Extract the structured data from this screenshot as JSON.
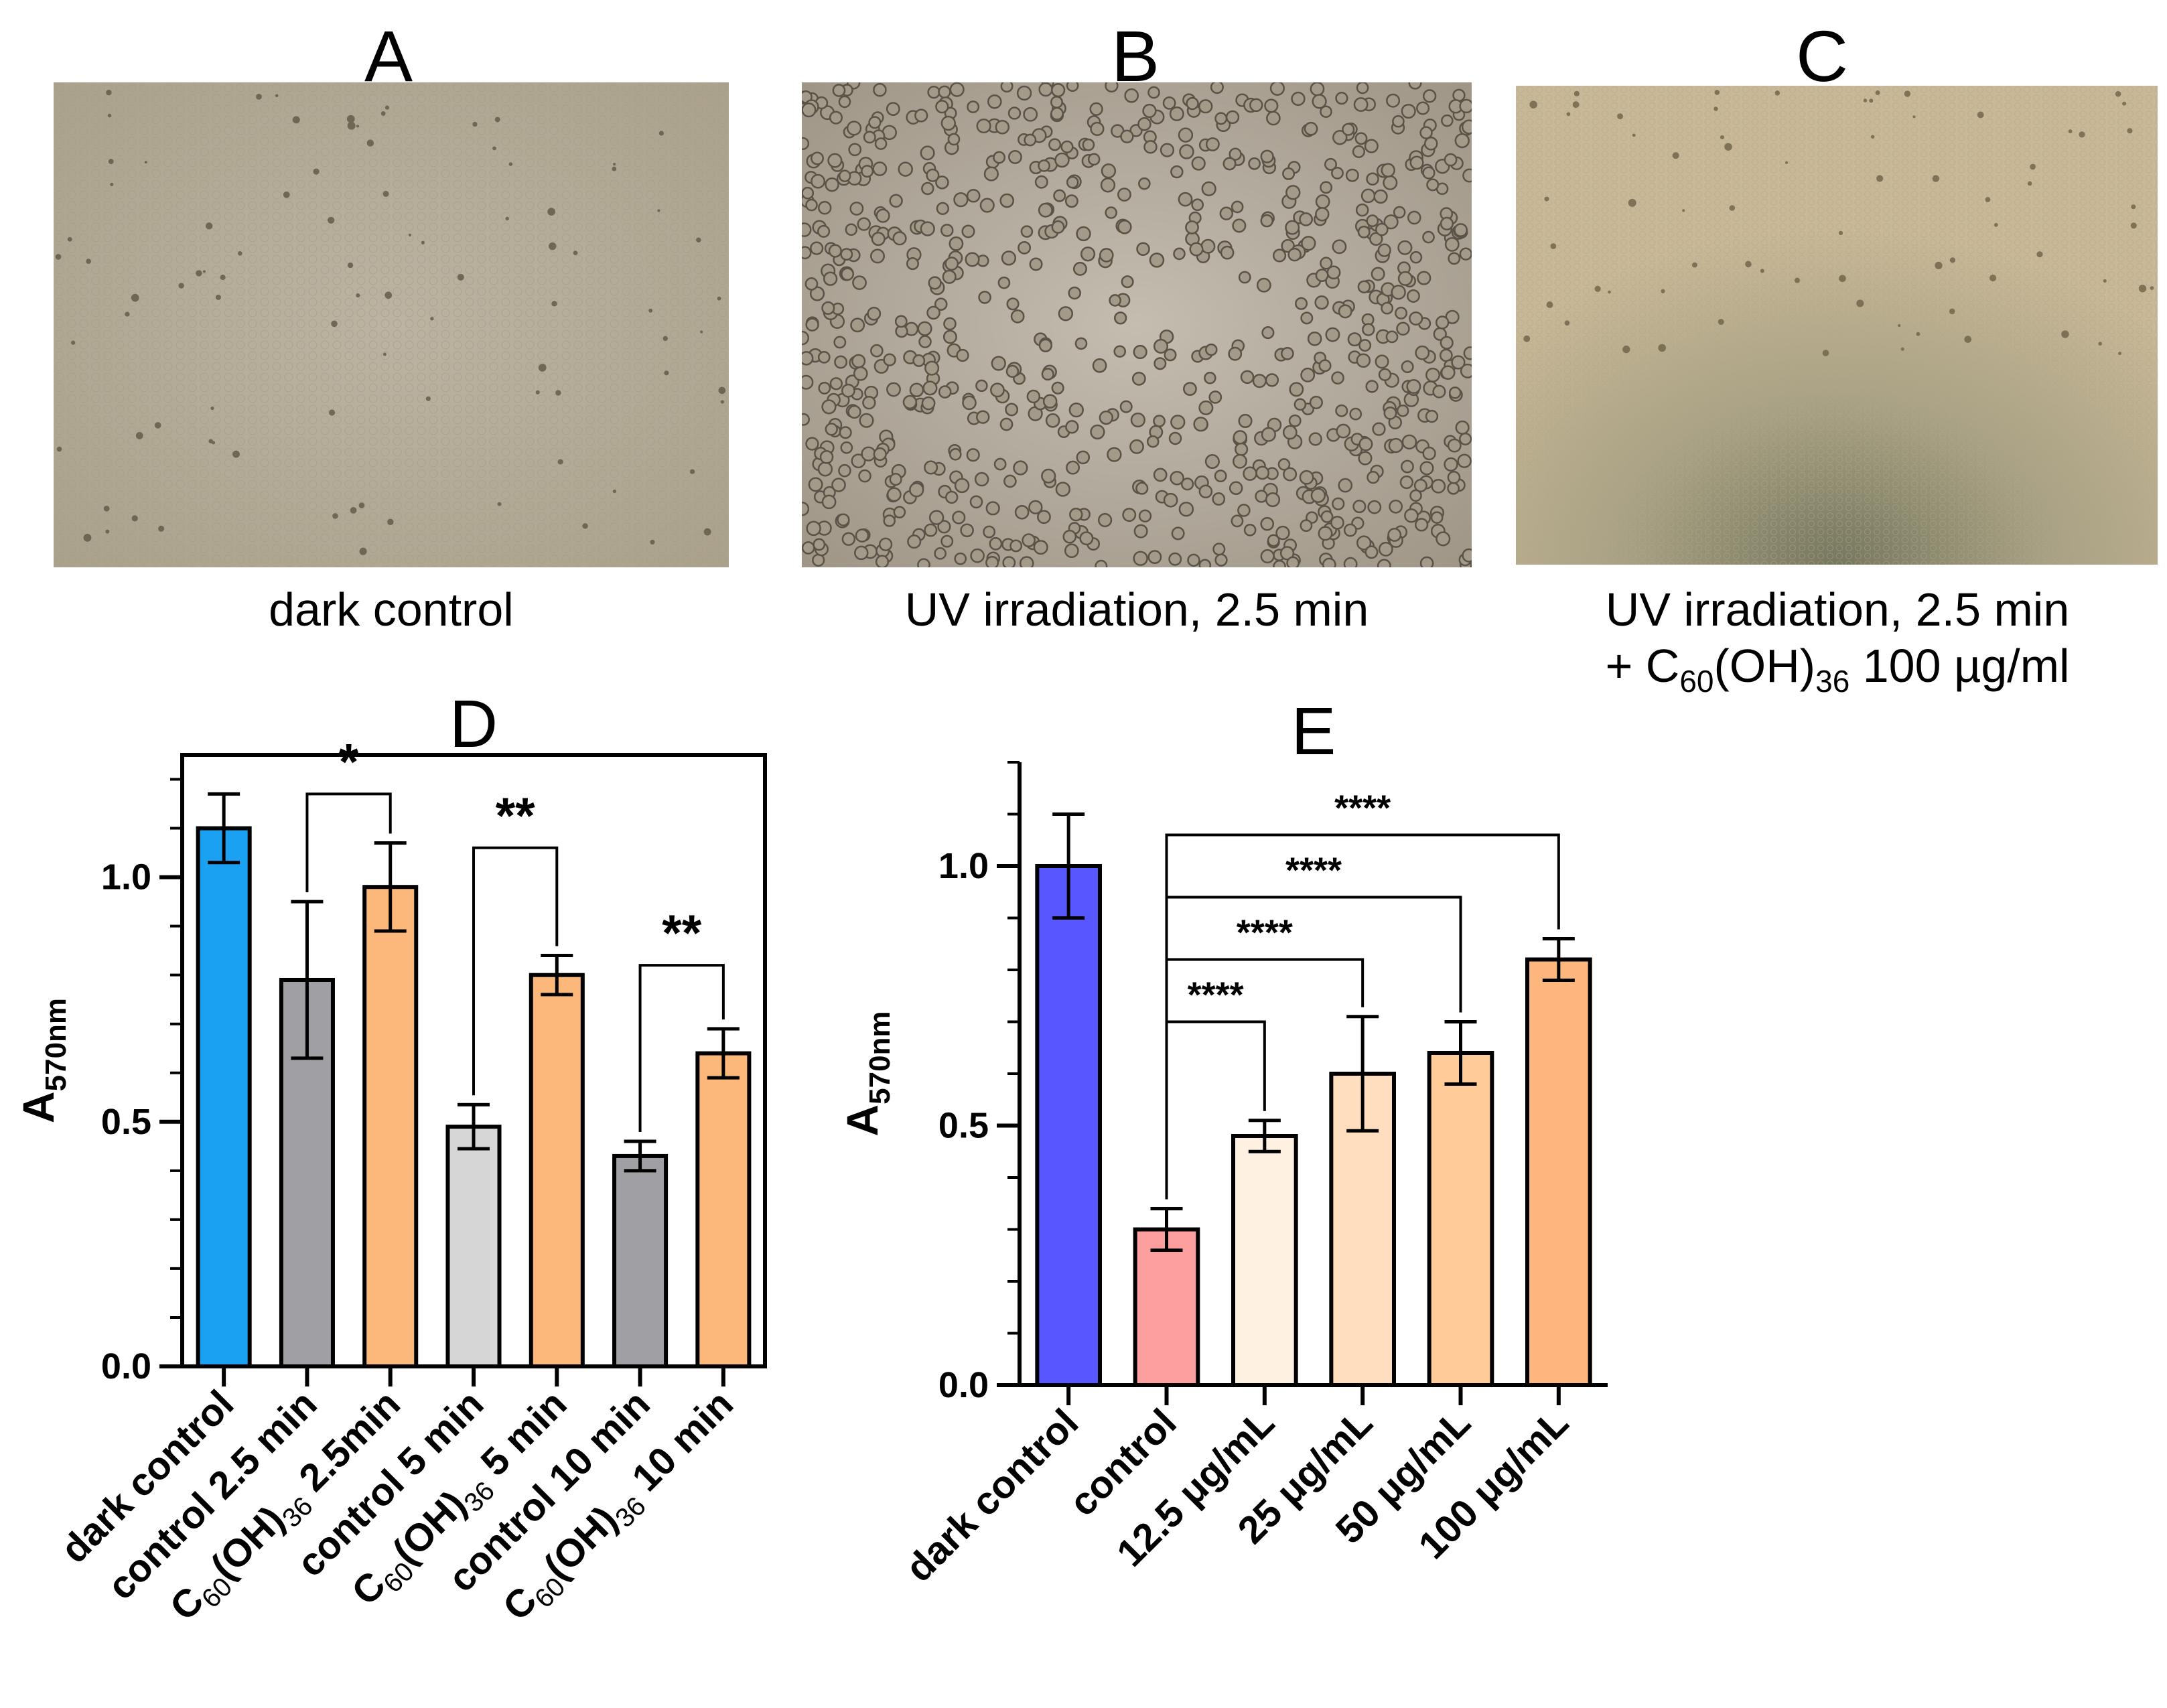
{
  "panels": {
    "a": {
      "letter": "A",
      "caption": "dark control"
    },
    "b": {
      "letter": "B",
      "caption": "UV irradiation, 2.5 min"
    },
    "c": {
      "letter": "C",
      "caption_line1": "UV irradiation, 2.5 min",
      "caption_line2_prefix": "+ C",
      "caption_sub1": "60",
      "caption_mid": "(OH)",
      "caption_sub2": "36",
      "caption_suffix": " 100 µg/ml"
    }
  },
  "colors": {
    "photo_a": "#b7ad98",
    "photo_b": "#b6ae9f",
    "photo_c": "#c3b596",
    "bar_outline": "#000000"
  },
  "chart_data": [
    {
      "panel": "D",
      "type": "bar",
      "title": "D",
      "ylabel": "A",
      "ylabel_sub": "570nm",
      "ylim": [
        0,
        1.25
      ],
      "yticks": [
        "0.0",
        "0.5",
        "1.0"
      ],
      "ytick_values": [
        0,
        0.5,
        1.0
      ],
      "categories": [
        {
          "main": "dark control"
        },
        {
          "main": "control 2.5 min"
        },
        {
          "pre": "C",
          "sub1": "60",
          "mid": "(OH)",
          "sub2": "36",
          "post": " 2.5min"
        },
        {
          "main": "control 5 min"
        },
        {
          "pre": "C",
          "sub1": "60",
          "mid": "(OH)",
          "sub2": "36",
          "post": " 5 min"
        },
        {
          "main": "control 10 min"
        },
        {
          "pre": "C",
          "sub1": "60",
          "mid": "(OH)",
          "sub2": "36",
          "post": " 10 min"
        }
      ],
      "values": [
        1.1,
        0.79,
        0.98,
        0.49,
        0.8,
        0.43,
        0.64
      ],
      "errors": [
        0.07,
        0.16,
        0.09,
        0.045,
        0.04,
        0.03,
        0.05
      ],
      "colors": [
        "#1ba1f2",
        "#a0a0a4",
        "#fcb87a",
        "#d6d6d6",
        "#fcb87a",
        "#a0a0a4",
        "#fcb87a"
      ],
      "significance": [
        {
          "from": 1,
          "to": 2,
          "label": "*",
          "level": 1.17
        },
        {
          "from": 3,
          "to": 4,
          "label": "**",
          "level": 1.06
        },
        {
          "from": 5,
          "to": 6,
          "label": "**",
          "level": 0.82
        }
      ]
    },
    {
      "panel": "E",
      "type": "bar",
      "title": "E",
      "ylabel": "A",
      "ylabel_sub": "570nm",
      "ylim": [
        0,
        1.2
      ],
      "yticks": [
        "0.0",
        "0.5",
        "1.0"
      ],
      "ytick_values": [
        0,
        0.5,
        1.0
      ],
      "categories": [
        {
          "main": "dark control"
        },
        {
          "main": "control"
        },
        {
          "main": "12.5 μg/mL"
        },
        {
          "main": "25 μg/mL"
        },
        {
          "main": "50 μg/mL"
        },
        {
          "main": "100 μg/mL"
        }
      ],
      "values": [
        1.0,
        0.3,
        0.48,
        0.6,
        0.64,
        0.82
      ],
      "errors": [
        0.1,
        0.04,
        0.03,
        0.11,
        0.06,
        0.04
      ],
      "colors": [
        "#5757ff",
        "#fe9f9f",
        "#fff1e2",
        "#ffdec0",
        "#ffcc99",
        "#fdb67b"
      ],
      "significance": [
        {
          "from": 1,
          "to": 2,
          "label": "****",
          "level": 0.7
        },
        {
          "from": 1,
          "to": 3,
          "label": "****",
          "level": 0.82
        },
        {
          "from": 1,
          "to": 4,
          "label": "****",
          "level": 0.94
        },
        {
          "from": 1,
          "to": 5,
          "label": "****",
          "level": 1.06
        }
      ]
    }
  ]
}
